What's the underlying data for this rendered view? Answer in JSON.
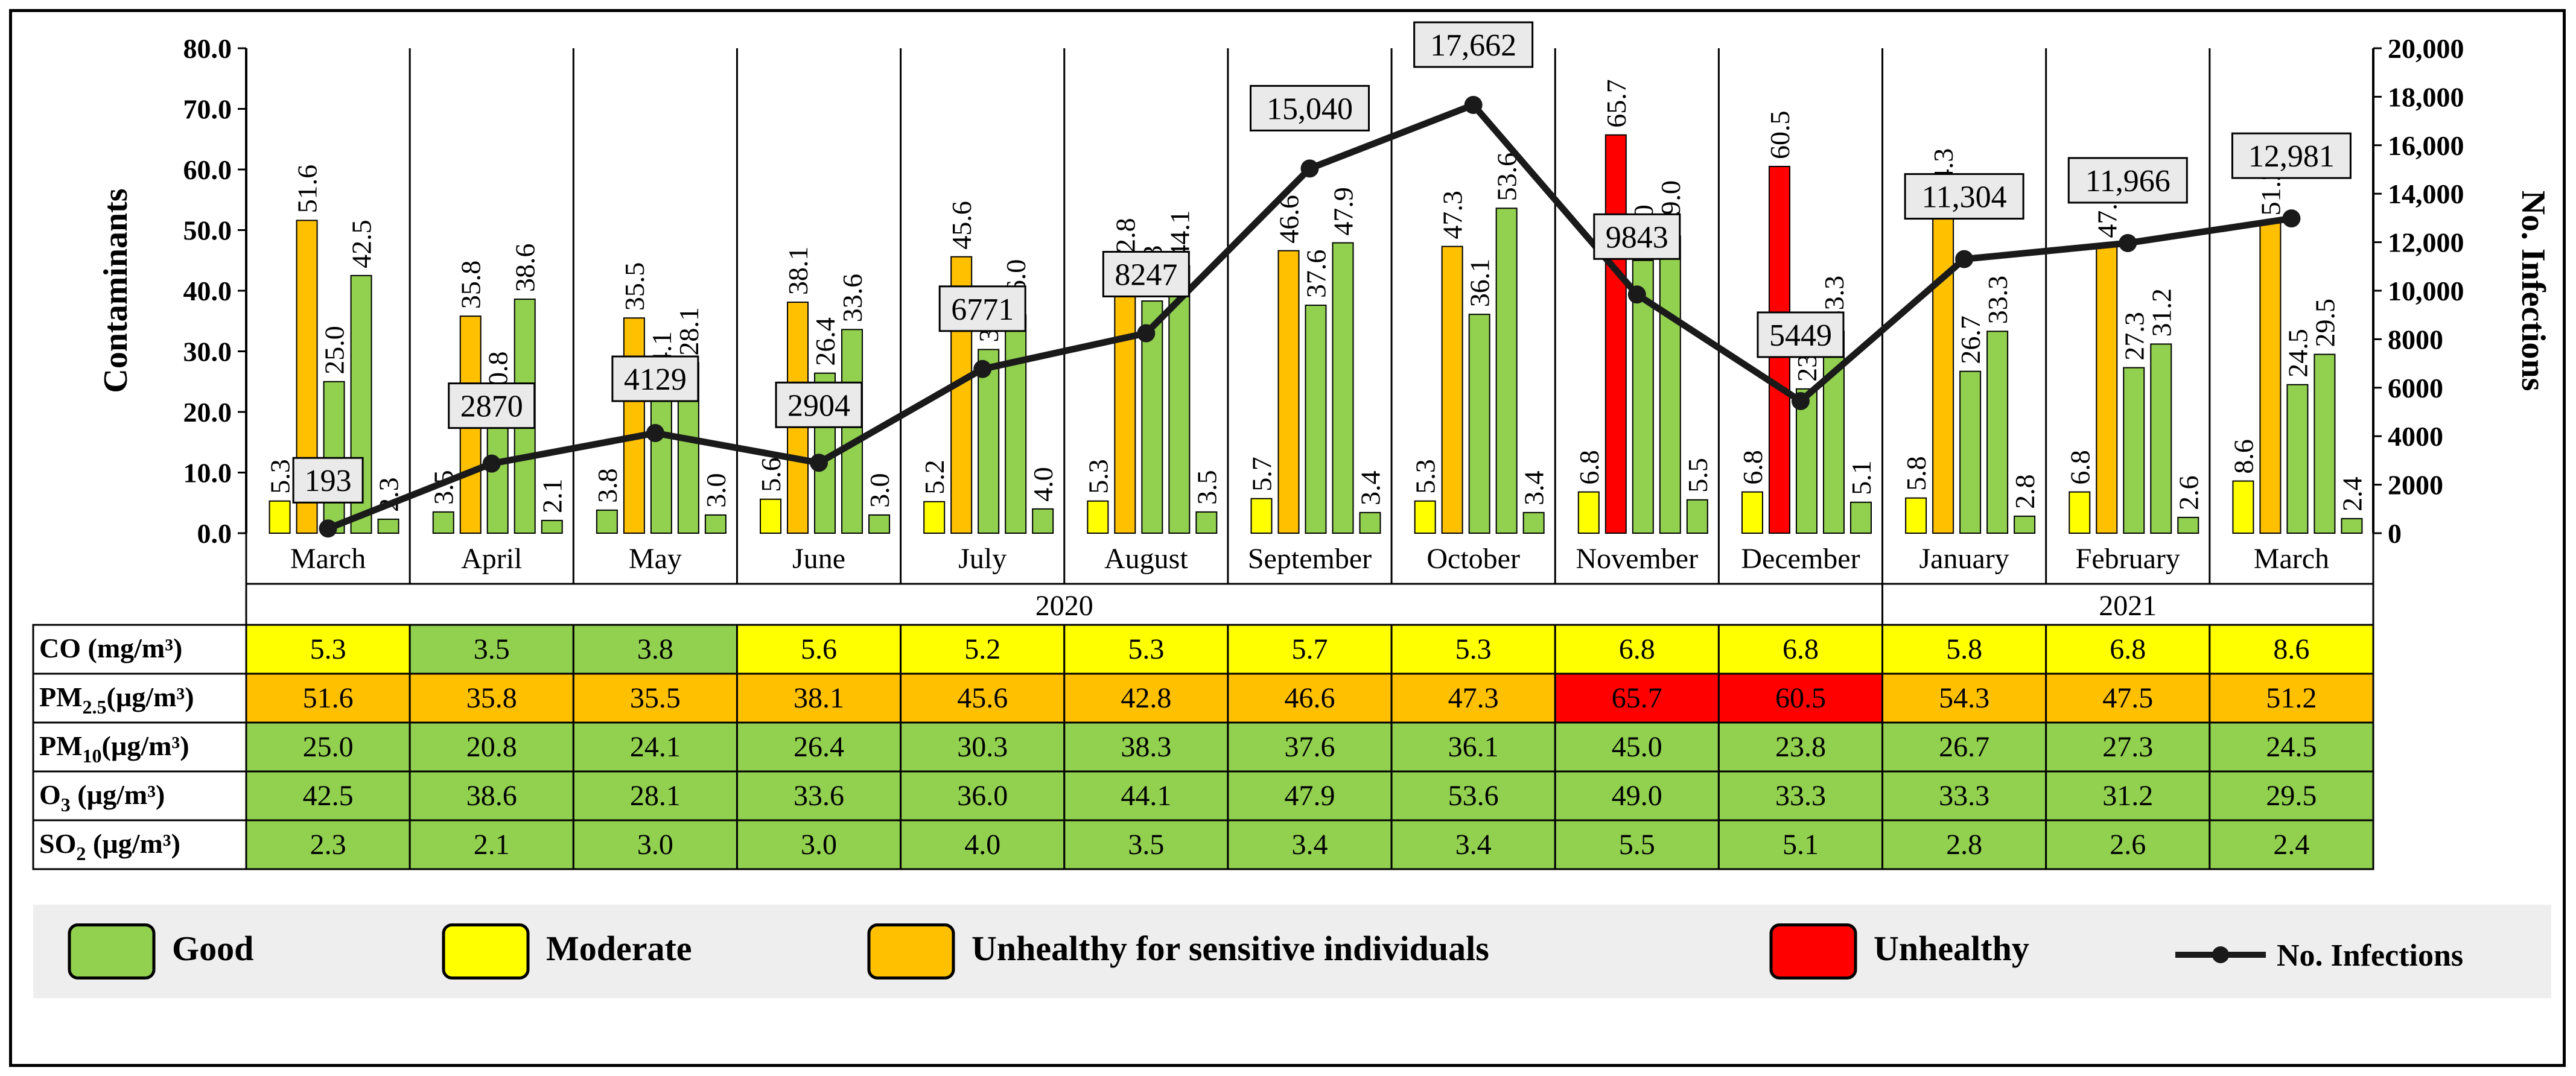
{
  "chart_data": {
    "type": "bar",
    "categories": [
      "March",
      "April",
      "May",
      "June",
      "July",
      "August",
      "September",
      "October",
      "November",
      "December",
      "January",
      "February",
      "March"
    ],
    "years": [
      {
        "label": "2020",
        "from": 0,
        "to": 9
      },
      {
        "label": "2021",
        "from": 10,
        "to": 12
      }
    ],
    "series": [
      {
        "name": "CO (mg/m³)",
        "row_label": "CO (mg/m³)",
        "values": [
          5.3,
          3.5,
          3.8,
          5.6,
          5.2,
          5.3,
          5.7,
          5.3,
          6.8,
          6.8,
          5.8,
          6.8,
          8.6
        ],
        "categories": [
          "Moderate",
          "Good",
          "Good",
          "Moderate",
          "Moderate",
          "Moderate",
          "Moderate",
          "Moderate",
          "Moderate",
          "Moderate",
          "Moderate",
          "Moderate",
          "Moderate"
        ]
      },
      {
        "name": "PM2.5 (µg/m³)",
        "row_label_main": "PM",
        "row_label_sub": "2.5",
        "row_label_unit": "(µg/m³)",
        "values": [
          51.6,
          35.8,
          35.5,
          38.1,
          45.6,
          42.8,
          46.6,
          47.3,
          65.7,
          60.5,
          54.3,
          47.5,
          51.2
        ],
        "categories": [
          "Unhealthy for sensitive individuals",
          "Unhealthy for sensitive individuals",
          "Unhealthy for sensitive individuals",
          "Unhealthy for sensitive individuals",
          "Unhealthy for sensitive individuals",
          "Unhealthy for sensitive individuals",
          "Unhealthy for sensitive individuals",
          "Unhealthy for sensitive individuals",
          "Unhealthy",
          "Unhealthy",
          "Unhealthy for sensitive individuals",
          "Unhealthy for sensitive individuals",
          "Unhealthy for sensitive individuals"
        ]
      },
      {
        "name": "PM10 (µg/m³)",
        "row_label_main": "PM",
        "row_label_sub": "10",
        "row_label_unit": "(µg/m³)",
        "values": [
          25.0,
          20.8,
          24.1,
          26.4,
          30.3,
          38.3,
          37.6,
          36.1,
          45.0,
          23.8,
          26.7,
          27.3,
          24.5
        ],
        "categories": [
          "Good",
          "Good",
          "Good",
          "Good",
          "Good",
          "Good",
          "Good",
          "Good",
          "Good",
          "Good",
          "Good",
          "Good",
          "Good"
        ]
      },
      {
        "name": "O3 (µg/m³)",
        "row_label_main": "O",
        "row_label_sub": "3",
        "row_label_unit": " (µg/m³)",
        "values": [
          42.5,
          38.6,
          28.1,
          33.6,
          36.0,
          44.1,
          47.9,
          53.6,
          49.0,
          33.3,
          33.3,
          31.2,
          29.5
        ],
        "categories": [
          "Good",
          "Good",
          "Good",
          "Good",
          "Good",
          "Good",
          "Good",
          "Good",
          "Good",
          "Good",
          "Good",
          "Good",
          "Good"
        ]
      },
      {
        "name": "SO2 (µg/m³)",
        "row_label_main": "SO",
        "row_label_sub": "2",
        "row_label_unit": " (µg/m³)",
        "values": [
          2.3,
          2.1,
          3.0,
          3.0,
          4.0,
          3.5,
          3.4,
          3.4,
          5.5,
          5.1,
          2.8,
          2.6,
          2.4
        ],
        "categories": [
          "Good",
          "Good",
          "Good",
          "Good",
          "Good",
          "Good",
          "Good",
          "Good",
          "Good",
          "Good",
          "Good",
          "Good",
          "Good"
        ]
      }
    ],
    "infections": {
      "name": "No. Infections",
      "type": "line",
      "values": [
        193,
        2870,
        4129,
        2904,
        6771,
        8247,
        15040,
        17662,
        9843,
        5449,
        11304,
        11966,
        12981
      ],
      "labels": [
        "193",
        "2870",
        "4129",
        "2904",
        "6771",
        "8247",
        "15,040",
        "17,662",
        "9843",
        "5449",
        "11,304",
        "11,966",
        "12,981"
      ]
    },
    "ylabel": "Contaminants",
    "ylabel_right": "No. Infections",
    "ylim": [
      0,
      80
    ],
    "ylim_right": [
      0,
      20000
    ],
    "yticks": [
      "0.0",
      "10.0",
      "20.0",
      "30.0",
      "40.0",
      "50.0",
      "60.0",
      "70.0",
      "80.0"
    ],
    "yticks_right": [
      "0",
      "2000",
      "4000",
      "6000",
      "8000",
      "10,000",
      "12,000",
      "14,000",
      "16,000",
      "18,000",
      "20,000"
    ],
    "legend": [
      {
        "label": "Good",
        "color": "#92d050"
      },
      {
        "label": "Moderate",
        "color": "#ffff00"
      },
      {
        "label": "Unhealthy for sensitive individuals",
        "color": "#ffc000"
      },
      {
        "label": "Unhealthy",
        "color": "#ff0000"
      },
      {
        "label": "No. Infections",
        "color": "#1a1a1a",
        "marker": "line"
      }
    ]
  },
  "colors": {
    "Good": "#92d050",
    "Moderate": "#ffff00",
    "Unhealthy for sensitive individuals": "#ffc000",
    "Unhealthy": "#ff0000",
    "line": "#1a1a1a",
    "legend_bg": "#eeeeee"
  }
}
